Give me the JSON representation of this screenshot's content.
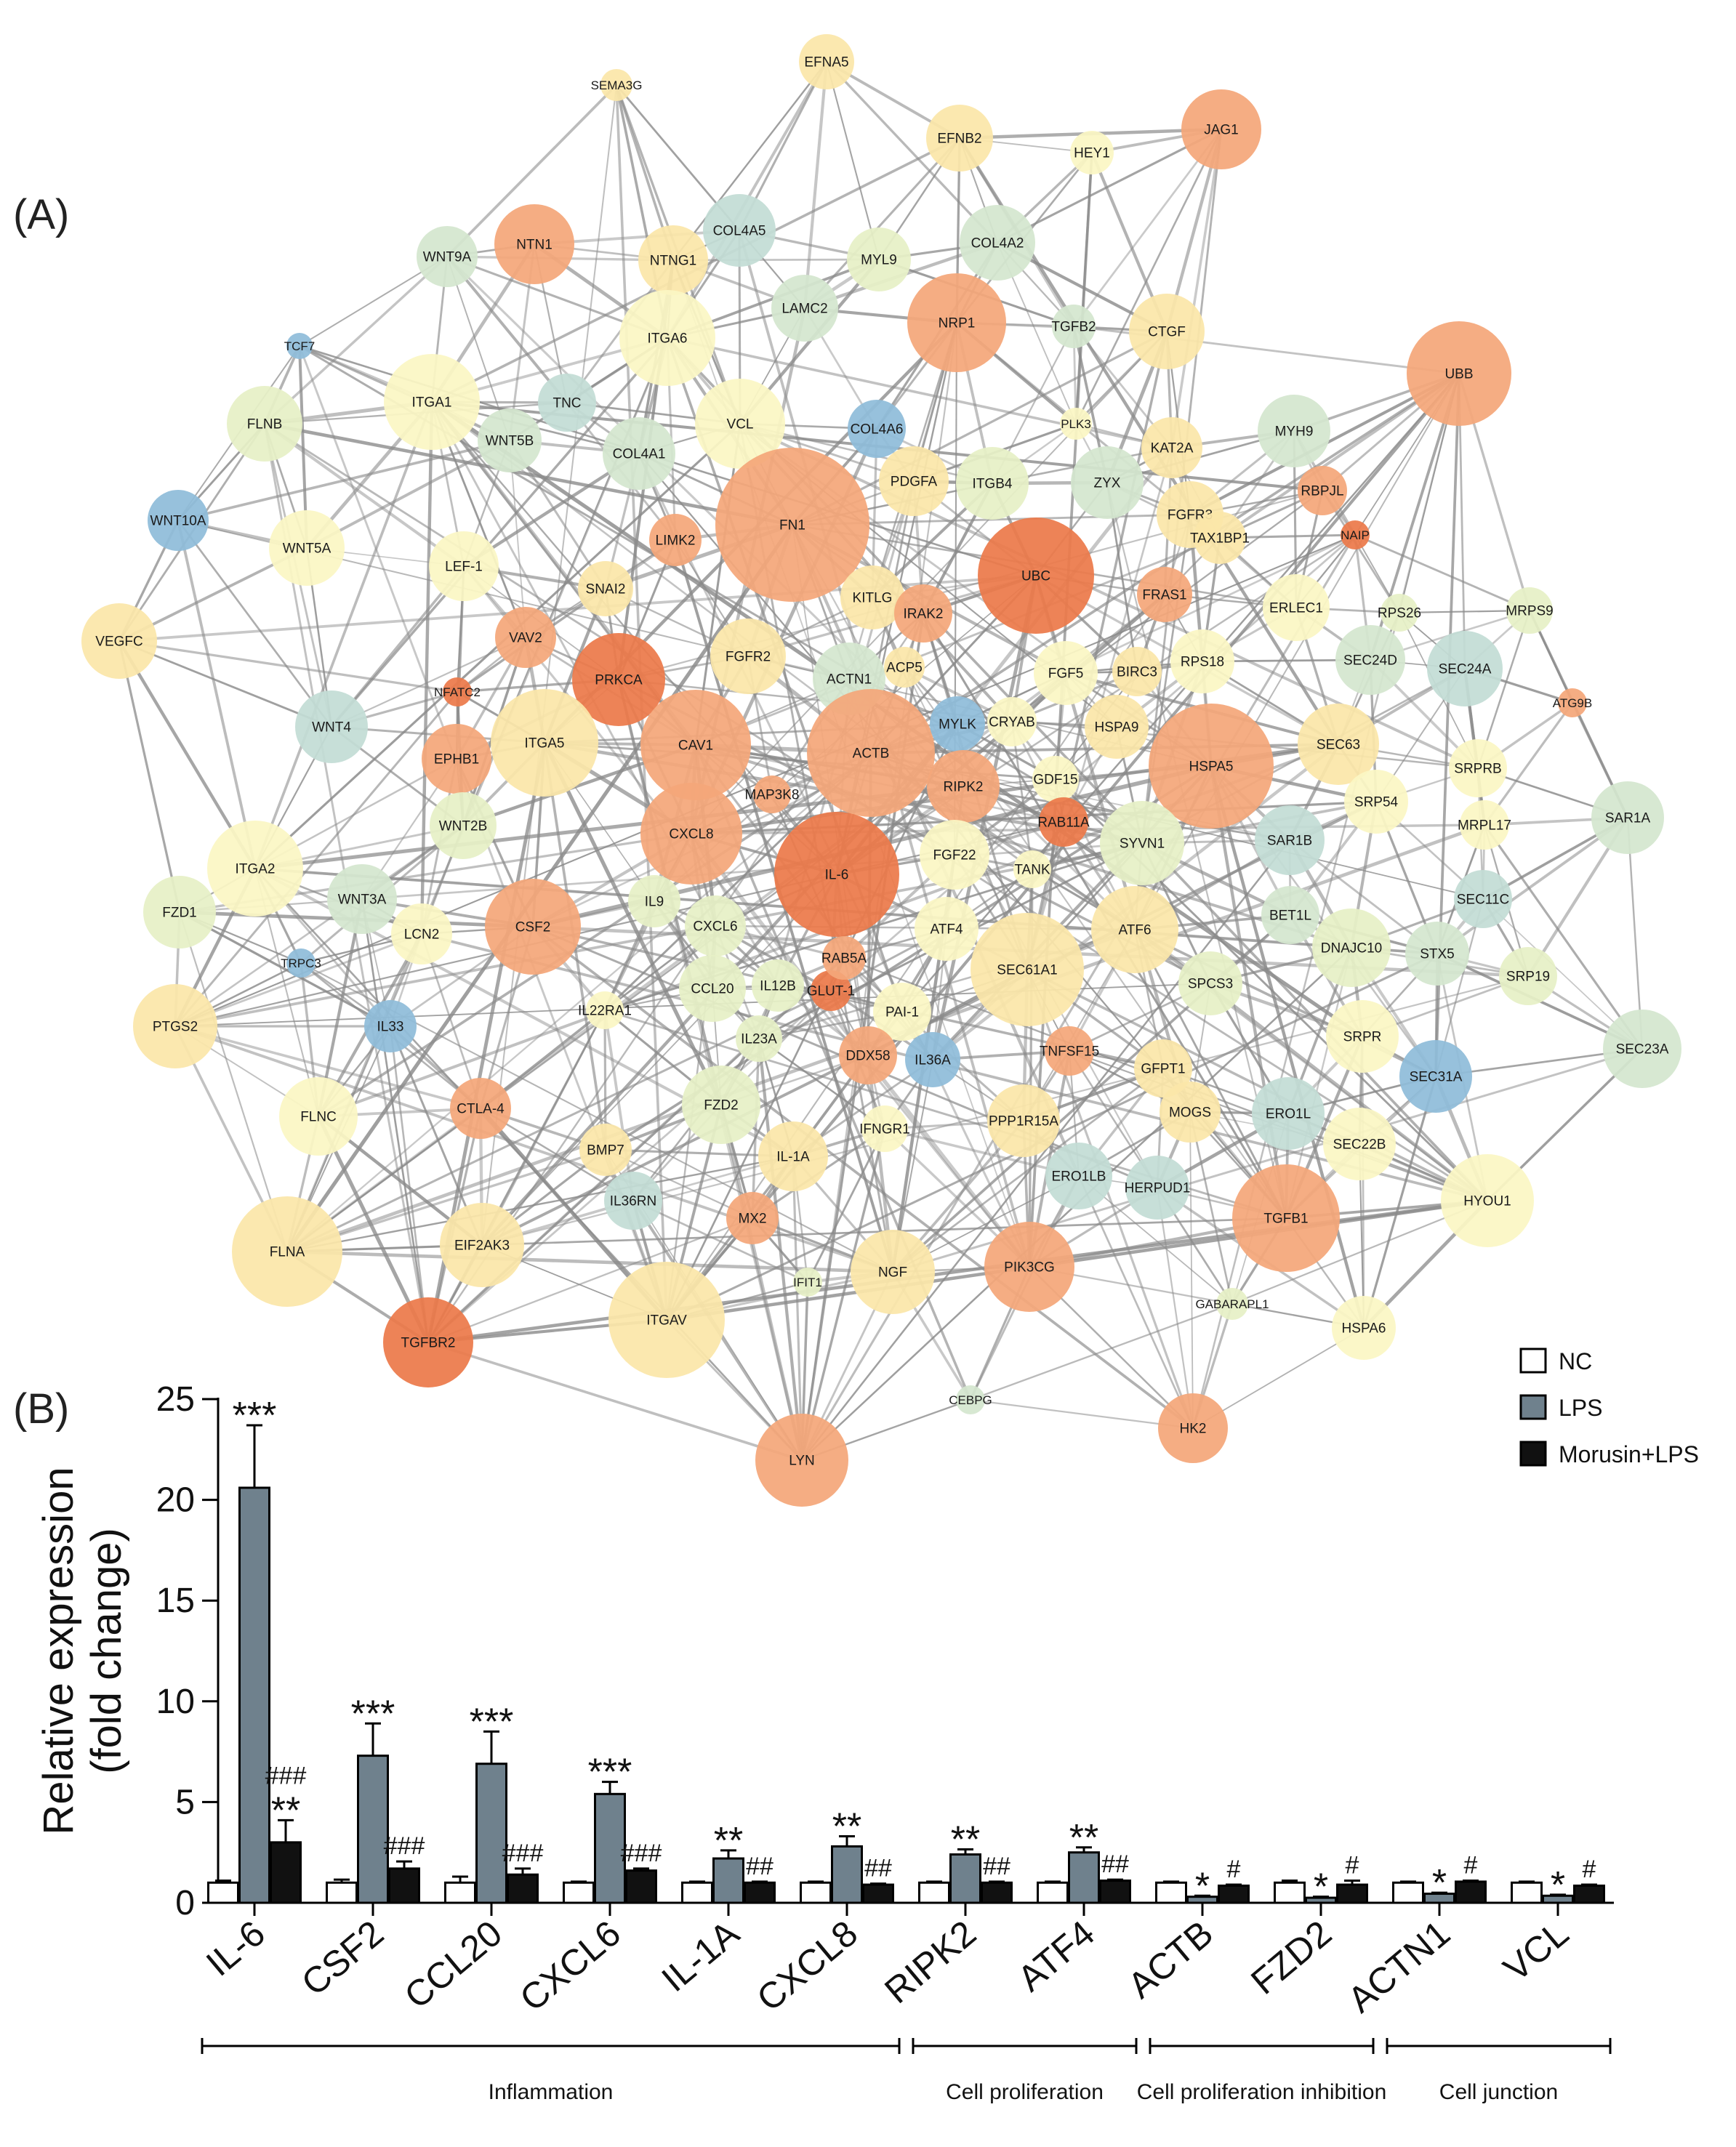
{
  "panel_labels": {
    "a": "(A)",
    "b": "(B)"
  },
  "colors": {
    "edge": "#8a8a8a",
    "nc_fill": "#ffffff",
    "lps_fill": "#6f818d",
    "morusin_fill": "#111111",
    "node_palette": {
      "orange": "#f4a77a",
      "red": "#ec7a4a",
      "yellow": "#fbe6a9",
      "lightyellow": "#fbf6c4",
      "lime": "#e6f0c6",
      "mint": "#d4e6cf",
      "teal": "#c3ddd5",
      "blue": "#8fbcd9"
    }
  },
  "network": {
    "nodes": [
      {
        "id": "EFNA5",
        "color": "yellow"
      },
      {
        "id": "SEMA3G",
        "color": "yellow"
      },
      {
        "id": "EFNB2",
        "color": "yellow"
      },
      {
        "id": "HEY1",
        "color": "lightyellow"
      },
      {
        "id": "JAG1",
        "color": "orange"
      },
      {
        "id": "NTN1",
        "color": "orange"
      },
      {
        "id": "NTNG1",
        "color": "yellow"
      },
      {
        "id": "COL4A5",
        "color": "teal"
      },
      {
        "id": "MYL9",
        "color": "lime"
      },
      {
        "id": "COL4A2",
        "color": "mint"
      },
      {
        "id": "WNT9A",
        "color": "mint"
      },
      {
        "id": "TCF7",
        "color": "blue"
      },
      {
        "id": "LAMC2",
        "color": "mint"
      },
      {
        "id": "NRP1",
        "color": "orange"
      },
      {
        "id": "TGFB2",
        "color": "mint"
      },
      {
        "id": "CTGF",
        "color": "yellow"
      },
      {
        "id": "UBB",
        "color": "orange"
      },
      {
        "id": "ITGA6",
        "color": "lightyellow"
      },
      {
        "id": "ITGA1",
        "color": "lightyellow"
      },
      {
        "id": "FLNB",
        "color": "lime"
      },
      {
        "id": "TNC",
        "color": "teal"
      },
      {
        "id": "COL4A1",
        "color": "mint"
      },
      {
        "id": "VCL",
        "color": "lightyellow"
      },
      {
        "id": "COL4A6",
        "color": "blue"
      },
      {
        "id": "PLK3",
        "color": "lightyellow"
      },
      {
        "id": "KAT2A",
        "color": "yellow"
      },
      {
        "id": "MYH9",
        "color": "mint"
      },
      {
        "id": "WNT10A",
        "color": "blue"
      },
      {
        "id": "WNT5B",
        "color": "mint"
      },
      {
        "id": "ITGB4",
        "color": "lime"
      },
      {
        "id": "ZYX",
        "color": "mint"
      },
      {
        "id": "RBPJL",
        "color": "orange"
      },
      {
        "id": "NAIP",
        "color": "red"
      },
      {
        "id": "FN1",
        "color": "orange"
      },
      {
        "id": "PDGFA",
        "color": "yellow"
      },
      {
        "id": "FGFR3",
        "color": "yellow"
      },
      {
        "id": "TAX1BP1",
        "color": "yellow"
      },
      {
        "id": "WNT5A",
        "color": "lightyellow"
      },
      {
        "id": "LEF-1",
        "color": "lightyellow"
      },
      {
        "id": "LIMK2",
        "color": "orange"
      },
      {
        "id": "UBC",
        "color": "red"
      },
      {
        "id": "SNAI2",
        "color": "yellow"
      },
      {
        "id": "KITLG",
        "color": "yellow"
      },
      {
        "id": "IRAK2",
        "color": "orange"
      },
      {
        "id": "FRAS1",
        "color": "orange"
      },
      {
        "id": "ERLEC1",
        "color": "lightyellow"
      },
      {
        "id": "RPS26",
        "color": "lime"
      },
      {
        "id": "MRPS9",
        "color": "lime"
      },
      {
        "id": "VEGFC",
        "color": "yellow"
      },
      {
        "id": "VAV2",
        "color": "orange"
      },
      {
        "id": "NFATC2",
        "color": "red"
      },
      {
        "id": "PRKCA",
        "color": "red"
      },
      {
        "id": "FGFR2",
        "color": "yellow"
      },
      {
        "id": "ACTN1",
        "color": "mint"
      },
      {
        "id": "ACP5",
        "color": "yellow"
      },
      {
        "id": "FGF5",
        "color": "lightyellow"
      },
      {
        "id": "BIRC3",
        "color": "yellow"
      },
      {
        "id": "RPS18",
        "color": "lightyellow"
      },
      {
        "id": "SEC24D",
        "color": "mint"
      },
      {
        "id": "SEC24A",
        "color": "teal"
      },
      {
        "id": "ATG9B",
        "color": "orange"
      },
      {
        "id": "WNT4",
        "color": "teal"
      },
      {
        "id": "EPHB1",
        "color": "orange"
      },
      {
        "id": "ITGA5",
        "color": "yellow"
      },
      {
        "id": "CAV1",
        "color": "orange"
      },
      {
        "id": "ACTB",
        "color": "orange"
      },
      {
        "id": "MYLK",
        "color": "blue"
      },
      {
        "id": "CRYAB",
        "color": "lightyellow"
      },
      {
        "id": "HSPA9",
        "color": "yellow"
      },
      {
        "id": "HSPA5",
        "color": "orange"
      },
      {
        "id": "SEC63",
        "color": "yellow"
      },
      {
        "id": "SRPRB",
        "color": "lightyellow"
      },
      {
        "id": "MAP3K8",
        "color": "orange"
      },
      {
        "id": "RIPK2",
        "color": "orange"
      },
      {
        "id": "GDF15",
        "color": "lightyellow"
      },
      {
        "id": "SRP54",
        "color": "lightyellow"
      },
      {
        "id": "ITGA2",
        "color": "lightyellow"
      },
      {
        "id": "WNT2B",
        "color": "lime"
      },
      {
        "id": "CXCL8",
        "color": "orange"
      },
      {
        "id": "RAB11A",
        "color": "red"
      },
      {
        "id": "MRPL17",
        "color": "lightyellow"
      },
      {
        "id": "SAR1A",
        "color": "mint"
      },
      {
        "id": "FZD1",
        "color": "lime"
      },
      {
        "id": "WNT3A",
        "color": "mint"
      },
      {
        "id": "IL-6",
        "color": "red"
      },
      {
        "id": "FGF22",
        "color": "lightyellow"
      },
      {
        "id": "SYVN1",
        "color": "lime"
      },
      {
        "id": "SAR1B",
        "color": "teal"
      },
      {
        "id": "TANK",
        "color": "lightyellow"
      },
      {
        "id": "SEC11C",
        "color": "teal"
      },
      {
        "id": "LCN2",
        "color": "lightyellow"
      },
      {
        "id": "CSF2",
        "color": "orange"
      },
      {
        "id": "IL9",
        "color": "lime"
      },
      {
        "id": "CXCL6",
        "color": "lime"
      },
      {
        "id": "ATF4",
        "color": "lightyellow"
      },
      {
        "id": "ATF6",
        "color": "yellow"
      },
      {
        "id": "BET1L",
        "color": "mint"
      },
      {
        "id": "TRPC3",
        "color": "blue"
      },
      {
        "id": "SEC61A1",
        "color": "yellow"
      },
      {
        "id": "DNAJC10",
        "color": "lime"
      },
      {
        "id": "STX5",
        "color": "mint"
      },
      {
        "id": "SRP19",
        "color": "lime"
      },
      {
        "id": "PTGS2",
        "color": "yellow"
      },
      {
        "id": "CCL20",
        "color": "lime"
      },
      {
        "id": "IL12B",
        "color": "lime"
      },
      {
        "id": "GLUT-1",
        "color": "red"
      },
      {
        "id": "RAB5A",
        "color": "orange"
      },
      {
        "id": "SPCS3",
        "color": "lime"
      },
      {
        "id": "IL22RA1",
        "color": "lightyellow"
      },
      {
        "id": "IL33",
        "color": "blue"
      },
      {
        "id": "PAI-1",
        "color": "lightyellow"
      },
      {
        "id": "IL23A",
        "color": "lime"
      },
      {
        "id": "DDX58",
        "color": "orange"
      },
      {
        "id": "IL36A",
        "color": "blue"
      },
      {
        "id": "SRPR",
        "color": "lightyellow"
      },
      {
        "id": "SEC23A",
        "color": "mint"
      },
      {
        "id": "TNFSF15",
        "color": "orange"
      },
      {
        "id": "GFPT1",
        "color": "yellow"
      },
      {
        "id": "SEC31A",
        "color": "blue"
      },
      {
        "id": "FLNC",
        "color": "lightyellow"
      },
      {
        "id": "CTLA-4",
        "color": "orange"
      },
      {
        "id": "FZD2",
        "color": "lime"
      },
      {
        "id": "PPP1R15A",
        "color": "yellow"
      },
      {
        "id": "MOGS",
        "color": "yellow"
      },
      {
        "id": "ERO1L",
        "color": "teal"
      },
      {
        "id": "SEC22B",
        "color": "lightyellow"
      },
      {
        "id": "BMP7",
        "color": "yellow"
      },
      {
        "id": "IL-1A",
        "color": "yellow"
      },
      {
        "id": "IFNGR1",
        "color": "lightyellow"
      },
      {
        "id": "IL36RN",
        "color": "teal"
      },
      {
        "id": "ERO1LB",
        "color": "teal"
      },
      {
        "id": "HERPUD1",
        "color": "teal"
      },
      {
        "id": "HYOU1",
        "color": "lightyellow"
      },
      {
        "id": "TGFB1",
        "color": "orange"
      },
      {
        "id": "FLNA",
        "color": "yellow"
      },
      {
        "id": "EIF2AK3",
        "color": "yellow"
      },
      {
        "id": "MX2",
        "color": "orange"
      },
      {
        "id": "IFIT1",
        "color": "lime"
      },
      {
        "id": "NGF",
        "color": "yellow"
      },
      {
        "id": "PIK3CG",
        "color": "orange"
      },
      {
        "id": "GABARAPL1",
        "color": "lime"
      },
      {
        "id": "HSPA6",
        "color": "lightyellow"
      },
      {
        "id": "TGFBR2",
        "color": "red"
      },
      {
        "id": "ITGAV",
        "color": "yellow"
      },
      {
        "id": "CEBPG",
        "color": "mint"
      },
      {
        "id": "HK2",
        "color": "orange"
      },
      {
        "id": "LYN",
        "color": "orange"
      }
    ]
  },
  "chart_data": {
    "type": "bar",
    "ylabel": "Relative expression (fold change)",
    "ylim": [
      0,
      25
    ],
    "yticks": [
      "0",
      "5",
      "10",
      "15",
      "20",
      "25"
    ],
    "categories": [
      "IL-6",
      "CSF2",
      "CCL20",
      "CXCL6",
      "IL-1A",
      "CXCL8",
      "RIPK2",
      "ATF4",
      "ACTB",
      "FZD2",
      "ACTN1",
      "VCL"
    ],
    "series": [
      {
        "name": "NC",
        "values": [
          1.0,
          1.0,
          1.0,
          1.0,
          1.0,
          1.0,
          1.0,
          1.0,
          1.0,
          1.0,
          1.0,
          1.0
        ],
        "errors": [
          0.1,
          0.15,
          0.3,
          0.05,
          0.05,
          0.05,
          0.05,
          0.05,
          0.05,
          0.1,
          0.05,
          0.05
        ]
      },
      {
        "name": "LPS",
        "values": [
          20.6,
          7.3,
          6.9,
          5.4,
          2.2,
          2.8,
          2.4,
          2.5,
          0.3,
          0.25,
          0.45,
          0.35
        ],
        "errors": [
          3.1,
          1.6,
          1.6,
          0.6,
          0.4,
          0.5,
          0.25,
          0.25,
          0.05,
          0.05,
          0.05,
          0.05
        ]
      },
      {
        "name": "Morusin+LPS",
        "values": [
          3.0,
          1.7,
          1.4,
          1.6,
          1.0,
          0.9,
          1.0,
          1.1,
          0.85,
          0.9,
          1.05,
          0.85
        ],
        "errors": [
          1.1,
          0.35,
          0.3,
          0.1,
          0.05,
          0.05,
          0.05,
          0.05,
          0.05,
          0.2,
          0.05,
          0.05
        ]
      }
    ],
    "lps_marks": [
      "***",
      "***",
      "***",
      "***",
      "**",
      "**",
      "**",
      "**",
      "*",
      "*",
      "*",
      "*"
    ],
    "morusin_marks": [
      "###\n**",
      "###",
      "###",
      "###",
      "##",
      "##",
      "##",
      "##",
      "#",
      "#",
      "#",
      "#"
    ],
    "legend": [
      {
        "name": "NC"
      },
      {
        "name": "LPS"
      },
      {
        "name": "Morusin+LPS"
      }
    ],
    "legend_position": "top-right",
    "groups": [
      {
        "label": "Inflammation",
        "start": 0,
        "end": 5
      },
      {
        "label": "Cell proliferation",
        "start": 6,
        "end": 7
      },
      {
        "label": "Cell proliferation inhibition",
        "start": 8,
        "end": 9
      },
      {
        "label": "Cell junction",
        "start": 10,
        "end": 11
      }
    ]
  }
}
